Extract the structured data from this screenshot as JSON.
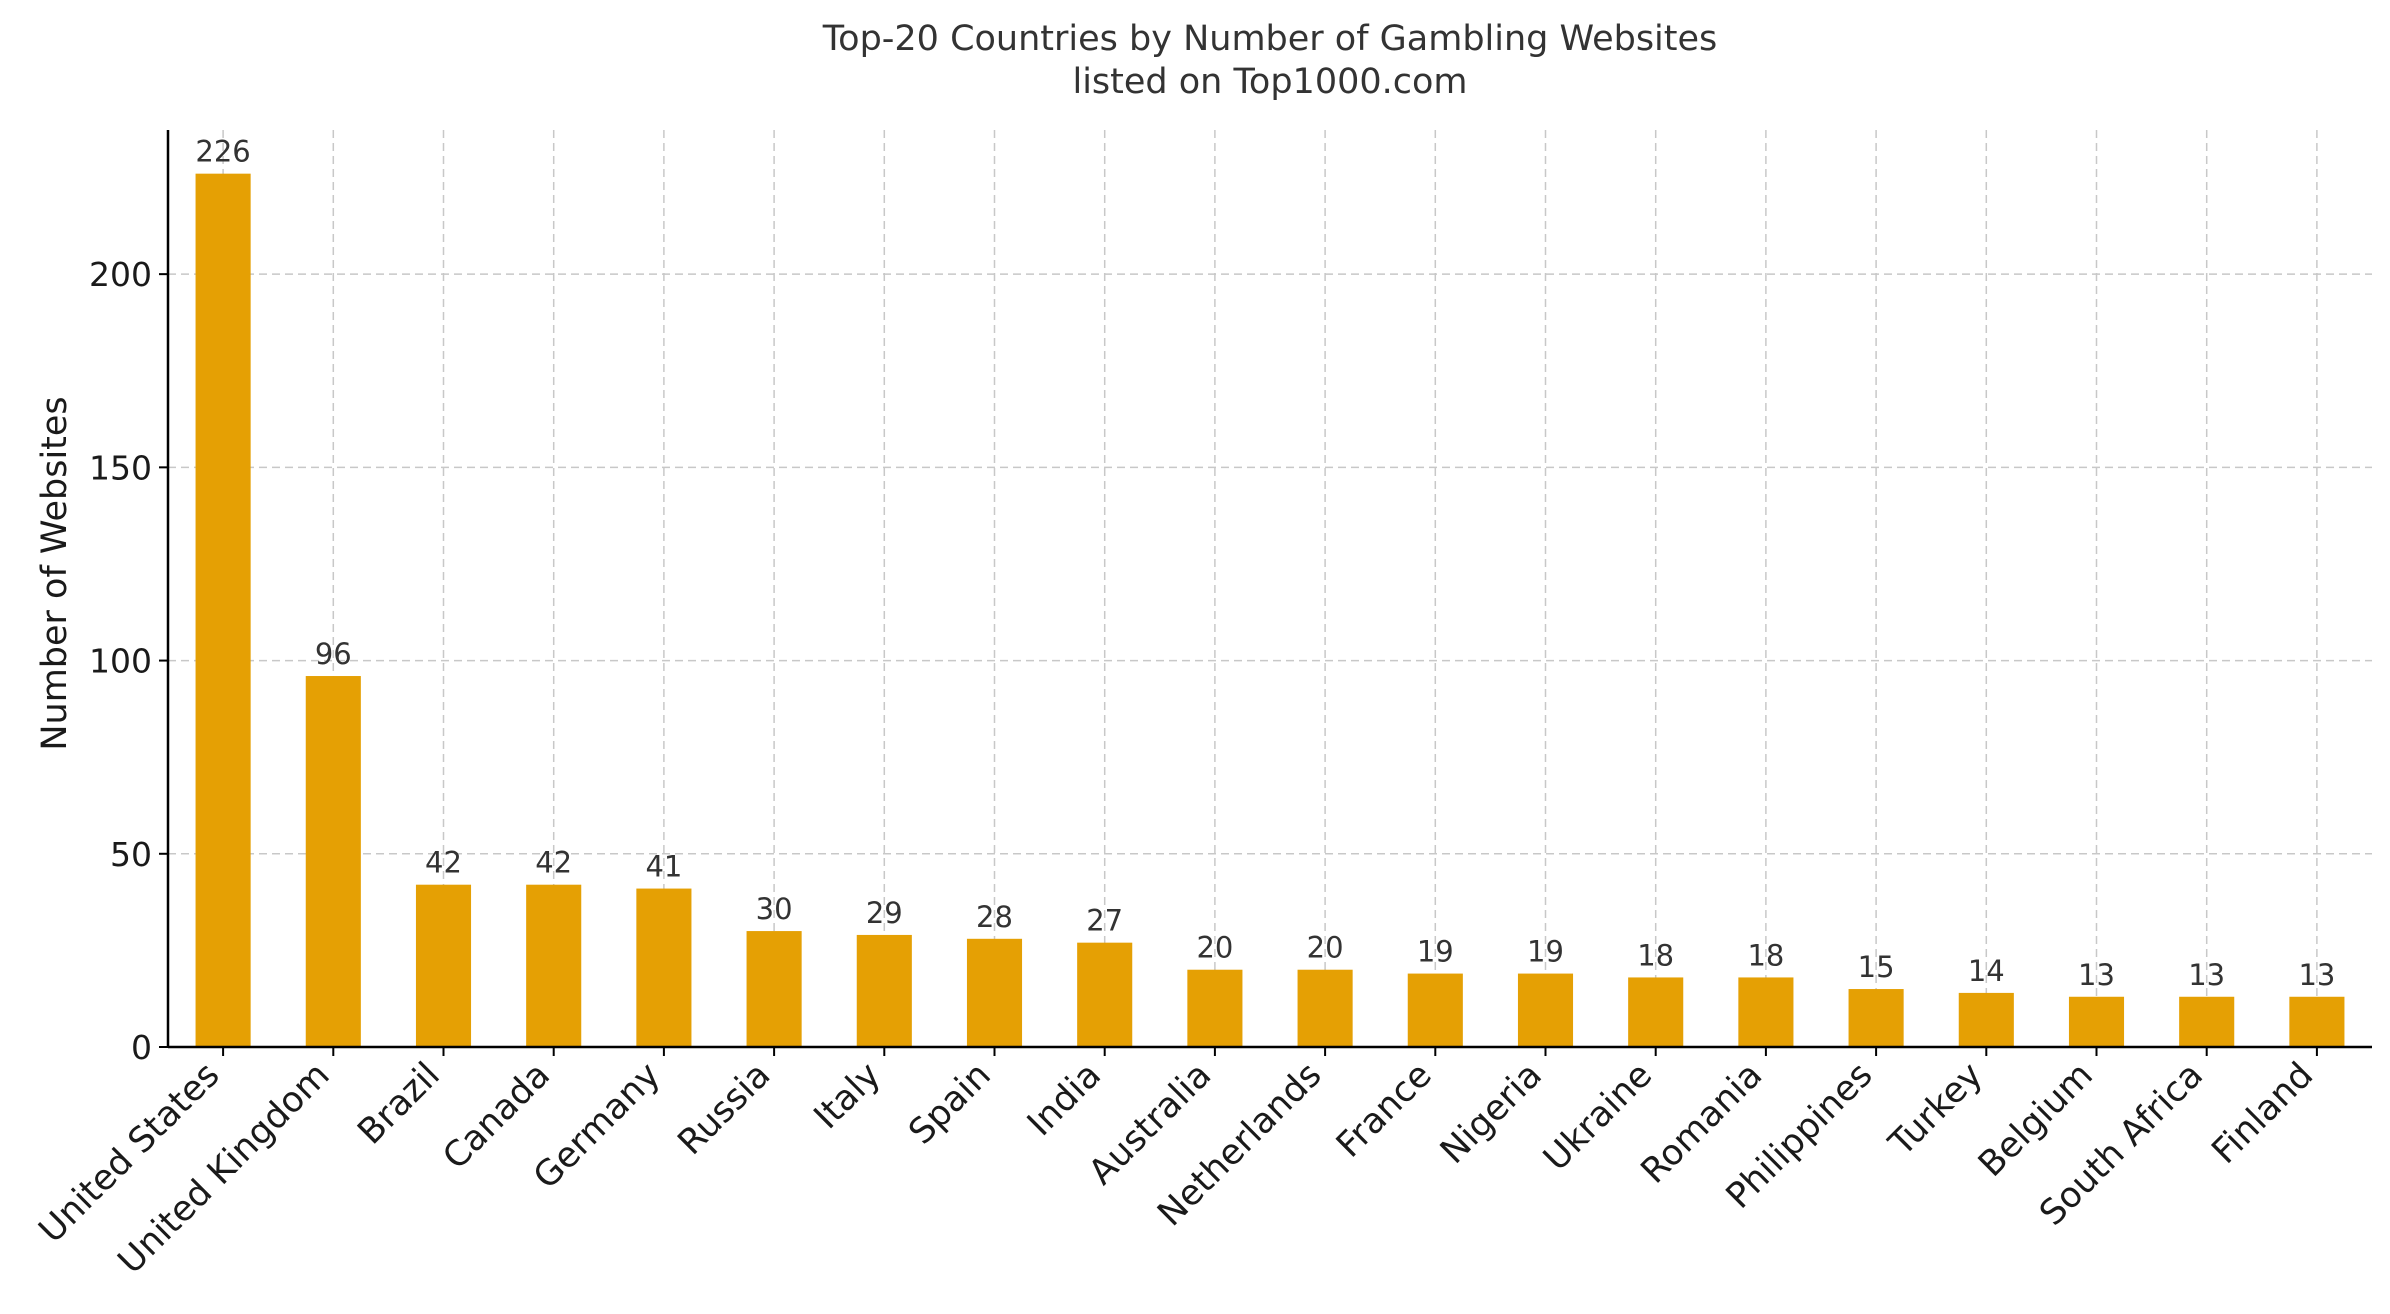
{
  "chart_data": {
    "type": "bar",
    "title": "Top-20 Countries by Number of Gambling Websites",
    "subtitle": "listed on Top1000.com",
    "xlabel": "",
    "ylabel": "Number of Websites",
    "categories": [
      "United States",
      "United Kingdom",
      "Brazil",
      "Canada",
      "Germany",
      "Russia",
      "Italy",
      "Spain",
      "India",
      "Australia",
      "Netherlands",
      "France",
      "Nigeria",
      "Ukraine",
      "Romania",
      "Philippines",
      "Turkey",
      "Belgium",
      "South Africa",
      "Finland"
    ],
    "values": [
      226,
      96,
      42,
      42,
      41,
      30,
      29,
      28,
      27,
      20,
      20,
      19,
      19,
      18,
      18,
      15,
      14,
      13,
      13,
      13
    ],
    "data_labels": [
      "226",
      "96",
      "42",
      "42",
      "41",
      "30",
      "29",
      "28",
      "27",
      "20",
      "20",
      "19",
      "19",
      "18",
      "18",
      "15",
      "14",
      "13",
      "13",
      "13"
    ],
    "yticks": [
      0,
      50,
      100,
      150,
      200
    ],
    "ytick_labels": [
      "0",
      "50",
      "100",
      "150",
      "200"
    ],
    "ylim": [
      0,
      237.3
    ],
    "grid": true,
    "bar_color": "#E5A004",
    "legend": "none"
  }
}
